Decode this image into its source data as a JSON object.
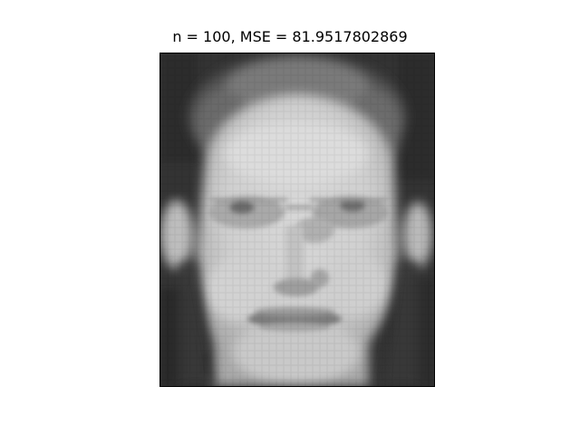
{
  "title": "n = 100, MSE = 81.9517802869",
  "image": {
    "subject": "grayscale low-resolution face reconstruction",
    "colormap": "gray",
    "axes_visible": false
  },
  "colors": {
    "background": "#ffffff",
    "frame": "#000000",
    "image_dark": "#2f2f2f",
    "image_light": "#d6d6d6"
  }
}
